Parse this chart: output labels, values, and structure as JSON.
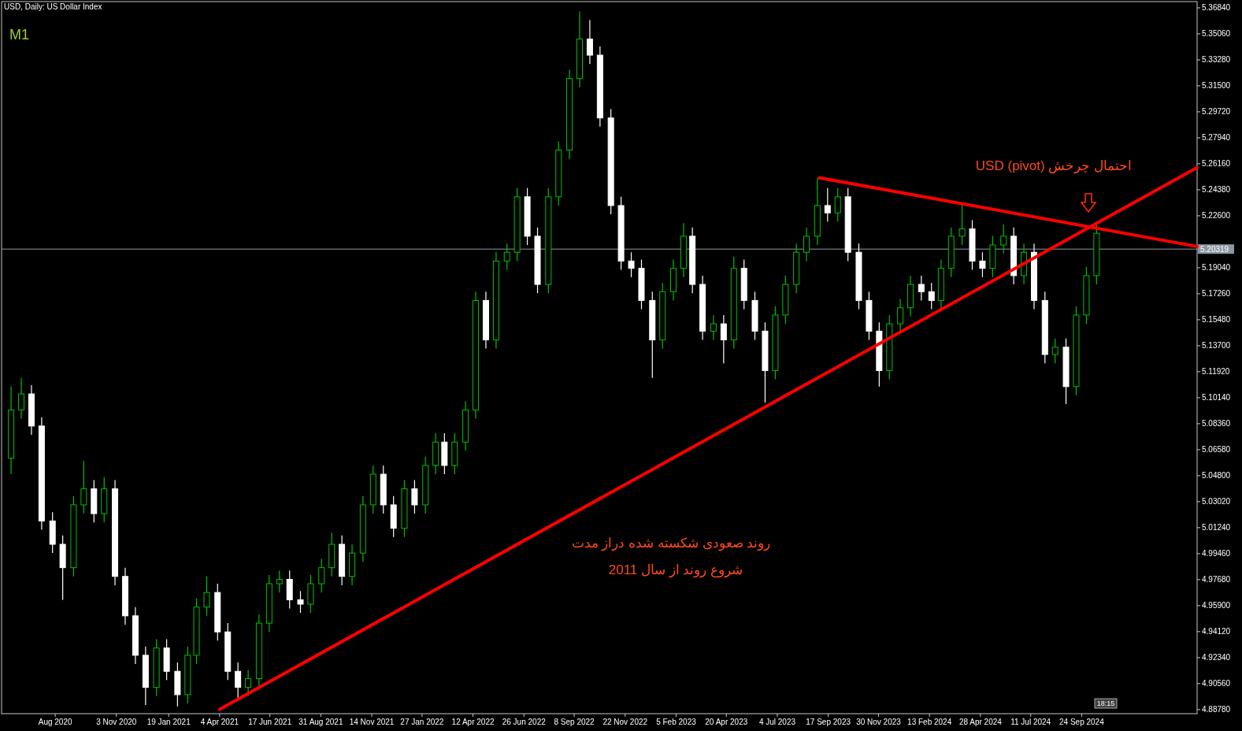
{
  "chart_data": {
    "type": "candlestick",
    "title": "USD, Daily:  US Dollar Index",
    "annotations": [
      "M1",
      "احتمال چرخش (pivot) USD",
      "روند صعودی شکسته شده دراز مدت",
      "شروع روند از سال 2011",
      "18:15"
    ],
    "x": [
      "2020-06-01",
      "2020-06-16",
      "2020-07-01",
      "2020-07-16",
      "2020-08-01",
      "2020-08-16",
      "2020-09-01",
      "2020-09-16",
      "2020-10-01",
      "2020-10-16",
      "2020-11-01",
      "2020-11-16",
      "2020-12-01",
      "2020-12-16",
      "2021-01-01",
      "2021-01-16",
      "2021-02-01",
      "2021-02-16",
      "2021-03-01",
      "2021-03-16",
      "2021-04-01",
      "2021-04-16",
      "2021-05-01",
      "2021-05-16",
      "2021-06-01",
      "2021-06-16",
      "2021-07-01",
      "2021-07-16",
      "2021-08-01",
      "2021-08-16",
      "2021-09-01",
      "2021-09-16",
      "2021-10-01",
      "2021-10-16",
      "2021-11-01",
      "2021-11-16",
      "2021-12-01",
      "2021-12-16",
      "2022-01-01",
      "2022-01-16",
      "2022-02-01",
      "2022-02-16",
      "2022-03-01",
      "2022-03-16",
      "2022-04-01",
      "2022-04-16",
      "2022-05-01",
      "2022-05-16",
      "2022-06-01",
      "2022-06-16",
      "2022-07-01",
      "2022-07-16",
      "2022-08-01",
      "2022-08-16",
      "2022-09-01",
      "2022-09-16",
      "2022-10-01",
      "2022-10-16",
      "2022-11-01",
      "2022-11-16",
      "2022-12-01",
      "2022-12-16",
      "2023-01-01",
      "2023-01-16",
      "2023-02-01",
      "2023-02-16",
      "2023-03-01",
      "2023-03-16",
      "2023-04-01",
      "2023-04-16",
      "2023-05-01",
      "2023-05-16",
      "2023-06-01",
      "2023-06-16",
      "2023-07-01",
      "2023-07-16",
      "2023-08-01",
      "2023-08-16",
      "2023-09-01",
      "2023-09-16",
      "2023-10-01",
      "2023-10-16",
      "2023-11-01",
      "2023-11-16",
      "2023-12-01",
      "2023-12-16",
      "2024-01-01",
      "2024-01-16",
      "2024-02-01",
      "2024-02-16",
      "2024-03-01",
      "2024-03-16",
      "2024-04-01",
      "2024-04-16",
      "2024-05-01",
      "2024-05-16",
      "2024-06-01",
      "2024-06-16",
      "2024-07-01",
      "2024-07-16",
      "2024-08-01",
      "2024-08-16",
      "2024-09-01",
      "2024-09-16",
      "2024-10-01",
      "2024-10-16"
    ],
    "ohlc": [
      [
        5.06,
        5.109,
        5.049,
        5.093
      ],
      [
        5.093,
        5.115,
        5.087,
        5.104
      ],
      [
        5.104,
        5.11,
        5.076,
        5.082
      ],
      [
        5.082,
        5.088,
        5.011,
        5.017
      ],
      [
        5.017,
        5.023,
        4.995,
        5.001
      ],
      [
        5.001,
        5.007,
        4.963,
        4.985
      ],
      [
        4.985,
        5.034,
        4.979,
        5.028
      ],
      [
        5.028,
        5.058,
        5.022,
        5.039
      ],
      [
        5.039,
        5.045,
        5.016,
        5.022
      ],
      [
        5.022,
        5.047,
        5.016,
        5.039
      ],
      [
        5.039,
        5.045,
        4.973,
        4.979
      ],
      [
        4.979,
        4.985,
        4.946,
        4.952
      ],
      [
        4.952,
        4.958,
        4.919,
        4.925
      ],
      [
        4.925,
        4.931,
        4.891,
        4.903
      ],
      [
        4.903,
        4.936,
        4.897,
        4.93
      ],
      [
        4.93,
        4.936,
        4.908,
        4.914
      ],
      [
        4.914,
        4.92,
        4.89,
        4.898
      ],
      [
        4.898,
        4.931,
        4.892,
        4.925
      ],
      [
        4.925,
        4.964,
        4.919,
        4.958
      ],
      [
        4.958,
        4.979,
        4.952,
        4.968
      ],
      [
        4.968,
        4.974,
        4.935,
        4.941
      ],
      [
        4.941,
        4.947,
        4.908,
        4.914
      ],
      [
        4.914,
        4.92,
        4.895,
        4.903
      ],
      [
        4.903,
        4.915,
        4.897,
        4.909
      ],
      [
        4.909,
        4.953,
        4.903,
        4.947
      ],
      [
        4.947,
        4.98,
        4.941,
        4.974
      ],
      [
        4.974,
        4.983,
        4.968,
        4.977
      ],
      [
        4.977,
        4.983,
        4.957,
        4.963
      ],
      [
        4.963,
        4.969,
        4.954,
        4.96
      ],
      [
        4.96,
        4.98,
        4.954,
        4.974
      ],
      [
        4.974,
        4.991,
        4.968,
        4.985
      ],
      [
        4.985,
        5.009,
        4.979,
        5.001
      ],
      [
        5.001,
        5.007,
        4.973,
        4.979
      ],
      [
        4.979,
        5.001,
        4.973,
        4.995
      ],
      [
        4.995,
        5.034,
        4.989,
        5.028
      ],
      [
        5.028,
        5.055,
        5.022,
        5.049
      ],
      [
        5.049,
        5.055,
        5.022,
        5.028
      ],
      [
        5.028,
        5.034,
        5.006,
        5.012
      ],
      [
        5.012,
        5.045,
        5.006,
        5.039
      ],
      [
        5.039,
        5.045,
        5.022,
        5.028
      ],
      [
        5.028,
        5.061,
        5.022,
        5.055
      ],
      [
        5.055,
        5.077,
        5.049,
        5.071
      ],
      [
        5.071,
        5.077,
        5.049,
        5.055
      ],
      [
        5.055,
        5.077,
        5.049,
        5.071
      ],
      [
        5.071,
        5.099,
        5.065,
        5.093
      ],
      [
        5.093,
        5.174,
        5.087,
        5.168
      ],
      [
        5.168,
        5.174,
        5.135,
        5.141
      ],
      [
        5.141,
        5.201,
        5.135,
        5.195
      ],
      [
        5.195,
        5.207,
        5.189,
        5.201
      ],
      [
        5.201,
        5.245,
        5.195,
        5.239
      ],
      [
        5.239,
        5.245,
        5.206,
        5.212
      ],
      [
        5.212,
        5.218,
        5.173,
        5.179
      ],
      [
        5.179,
        5.245,
        5.173,
        5.239
      ],
      [
        5.239,
        5.277,
        5.233,
        5.271
      ],
      [
        5.271,
        5.326,
        5.265,
        5.32
      ],
      [
        5.32,
        5.366,
        5.314,
        5.347
      ],
      [
        5.347,
        5.36,
        5.33,
        5.336
      ],
      [
        5.336,
        5.342,
        5.287,
        5.293
      ],
      [
        5.293,
        5.299,
        5.227,
        5.233
      ],
      [
        5.233,
        5.239,
        5.189,
        5.195
      ],
      [
        5.195,
        5.201,
        5.184,
        5.19
      ],
      [
        5.19,
        5.196,
        5.162,
        5.168
      ],
      [
        5.168,
        5.174,
        5.115,
        5.141
      ],
      [
        5.141,
        5.18,
        5.135,
        5.174
      ],
      [
        5.174,
        5.196,
        5.168,
        5.19
      ],
      [
        5.19,
        5.221,
        5.184,
        5.212
      ],
      [
        5.212,
        5.218,
        5.173,
        5.179
      ],
      [
        5.179,
        5.185,
        5.141,
        5.147
      ],
      [
        5.147,
        5.158,
        5.141,
        5.152
      ],
      [
        5.152,
        5.158,
        5.125,
        5.141
      ],
      [
        5.141,
        5.198,
        5.135,
        5.19
      ],
      [
        5.19,
        5.196,
        5.162,
        5.168
      ],
      [
        5.168,
        5.174,
        5.141,
        5.147
      ],
      [
        5.147,
        5.153,
        5.098,
        5.12
      ],
      [
        5.12,
        5.164,
        5.114,
        5.158
      ],
      [
        5.158,
        5.185,
        5.152,
        5.179
      ],
      [
        5.179,
        5.207,
        5.173,
        5.201
      ],
      [
        5.201,
        5.218,
        5.195,
        5.212
      ],
      [
        5.212,
        5.252,
        5.206,
        5.233
      ],
      [
        5.233,
        5.245,
        5.222,
        5.228
      ],
      [
        5.228,
        5.245,
        5.222,
        5.239
      ],
      [
        5.239,
        5.245,
        5.195,
        5.201
      ],
      [
        5.201,
        5.207,
        5.162,
        5.168
      ],
      [
        5.168,
        5.174,
        5.141,
        5.147
      ],
      [
        5.147,
        5.153,
        5.109,
        5.12
      ],
      [
        5.12,
        5.158,
        5.114,
        5.152
      ],
      [
        5.152,
        5.169,
        5.146,
        5.163
      ],
      [
        5.163,
        5.185,
        5.157,
        5.179
      ],
      [
        5.179,
        5.185,
        5.168,
        5.174
      ],
      [
        5.174,
        5.18,
        5.162,
        5.168
      ],
      [
        5.168,
        5.196,
        5.162,
        5.19
      ],
      [
        5.19,
        5.218,
        5.184,
        5.212
      ],
      [
        5.212,
        5.234,
        5.206,
        5.217
      ],
      [
        5.217,
        5.223,
        5.189,
        5.195
      ],
      [
        5.195,
        5.201,
        5.184,
        5.19
      ],
      [
        5.19,
        5.212,
        5.184,
        5.206
      ],
      [
        5.206,
        5.22,
        5.2,
        5.212
      ],
      [
        5.212,
        5.218,
        5.179,
        5.185
      ],
      [
        5.185,
        5.207,
        5.179,
        5.201
      ],
      [
        5.201,
        5.207,
        5.162,
        5.168
      ],
      [
        5.168,
        5.174,
        5.125,
        5.131
      ],
      [
        5.131,
        5.142,
        5.125,
        5.136
      ],
      [
        5.136,
        5.142,
        5.097,
        5.109
      ],
      [
        5.109,
        5.164,
        5.103,
        5.158
      ],
      [
        5.158,
        5.191,
        5.152,
        5.185
      ],
      [
        5.185,
        5.22,
        5.179,
        5.214
      ]
    ],
    "series": [
      {
        "type": "line",
        "color": "#ff0000",
        "x": [
          "2021-04-04",
          "2025-03-13"
        ],
        "values": [
          4.888,
          5.259
        ]
      },
      {
        "type": "line",
        "color": "#ff0000",
        "x": [
          "2023-09-04",
          "2025-03-13"
        ],
        "values": [
          5.252,
          5.205
        ]
      }
    ],
    "ref_lines": [
      {
        "axis": "y",
        "value": 5.20319,
        "label": "5.20319",
        "color": "#8c97a3"
      }
    ],
    "xlim": [
      "2020-05-18",
      "2025-03-13"
    ],
    "ylim": [
      4.885,
      5.3727
    ],
    "xticks": [
      {
        "value": "2020-08-05",
        "label": "Aug 2020"
      },
      {
        "value": "2020-11-03",
        "label": "3 Nov 2020"
      },
      {
        "value": "2021-01-19",
        "label": "19 Jan 2021"
      },
      {
        "value": "2021-04-04",
        "label": "4 Apr 2021"
      },
      {
        "value": "2021-06-17",
        "label": "17 Jun 2021"
      },
      {
        "value": "2021-08-31",
        "label": "31 Aug 2021"
      },
      {
        "value": "2021-11-14",
        "label": "14 Nov 2021"
      },
      {
        "value": "2022-01-27",
        "label": "27 Jan 2022"
      },
      {
        "value": "2022-04-12",
        "label": "12 Apr 2022"
      },
      {
        "value": "2022-06-26",
        "label": "26 Jun 2022"
      },
      {
        "value": "2022-09-08",
        "label": "8 Sep 2022"
      },
      {
        "value": "2022-11-22",
        "label": "22 Nov 2022"
      },
      {
        "value": "2023-02-05",
        "label": "5 Feb 2023"
      },
      {
        "value": "2023-04-20",
        "label": "20 Apr 2023"
      },
      {
        "value": "2023-07-04",
        "label": "4 Jul 2023"
      },
      {
        "value": "2023-09-17",
        "label": "17 Sep 2023"
      },
      {
        "value": "2023-11-30",
        "label": "30 Nov 2023"
      },
      {
        "value": "2024-02-13",
        "label": "13 Feb 2024"
      },
      {
        "value": "2024-04-28",
        "label": "28 Apr 2024"
      },
      {
        "value": "2024-07-11",
        "label": "11 Jul 2024"
      },
      {
        "value": "2024-09-24",
        "label": "24 Sep 2024"
      }
    ],
    "yticks": [
      {
        "value": 5.3684,
        "label": "5.36840"
      },
      {
        "value": 5.3506,
        "label": "5.35060"
      },
      {
        "value": 5.3328,
        "label": "5.33280"
      },
      {
        "value": 5.315,
        "label": "5.31500"
      },
      {
        "value": 5.2972,
        "label": "5.29720"
      },
      {
        "value": 5.2794,
        "label": "5.27940"
      },
      {
        "value": 5.2616,
        "label": "5.26160"
      },
      {
        "value": 5.2438,
        "label": "5.24380"
      },
      {
        "value": 5.226,
        "label": "5.22600"
      },
      {
        "value": 5.1904,
        "label": "5.19040"
      },
      {
        "value": 5.1726,
        "label": "5.17260"
      },
      {
        "value": 5.1548,
        "label": "5.15480"
      },
      {
        "value": 5.137,
        "label": "5.13700"
      },
      {
        "value": 5.1192,
        "label": "5.11920"
      },
      {
        "value": 5.1014,
        "label": "5.10140"
      },
      {
        "value": 5.0836,
        "label": "5.08360"
      },
      {
        "value": 5.0658,
        "label": "5.06580"
      },
      {
        "value": 5.048,
        "label": "5.04800"
      },
      {
        "value": 5.0302,
        "label": "5.03020"
      },
      {
        "value": 5.0124,
        "label": "5.01240"
      },
      {
        "value": 4.9946,
        "label": "4.99460"
      },
      {
        "value": 4.9768,
        "label": "4.97680"
      },
      {
        "value": 4.959,
        "label": "4.95900"
      },
      {
        "value": 4.9412,
        "label": "4.94120"
      },
      {
        "value": 4.9234,
        "label": "4.92340"
      },
      {
        "value": 4.9056,
        "label": "4.90560"
      },
      {
        "value": 4.8878,
        "label": "4.88780"
      }
    ]
  }
}
